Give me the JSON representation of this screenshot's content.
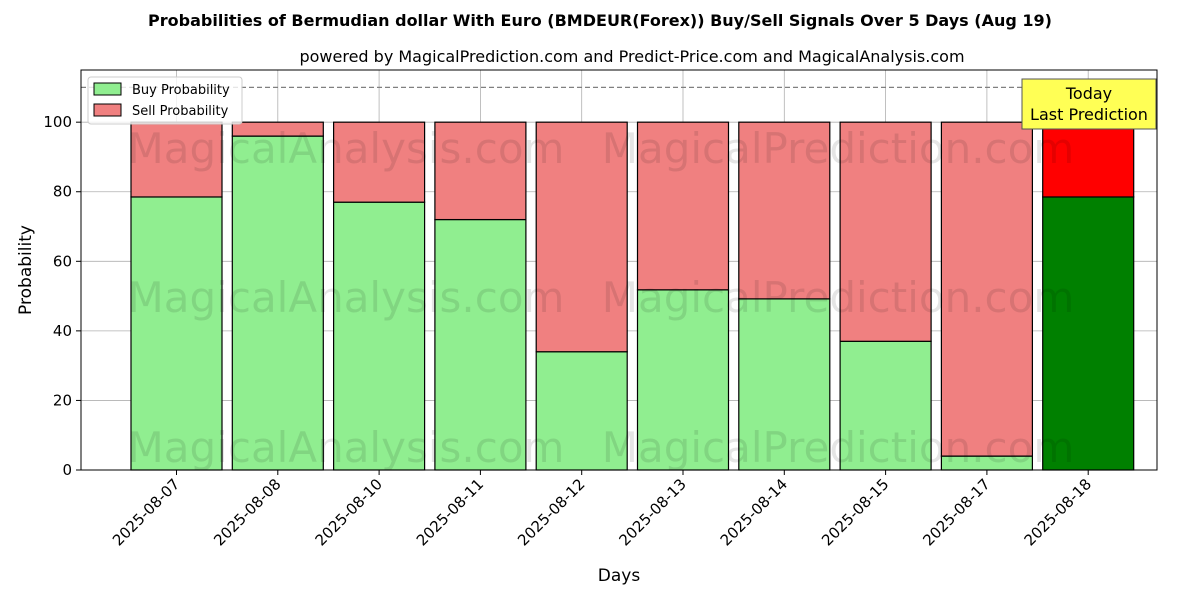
{
  "chart_data": {
    "type": "bar",
    "stacked": true,
    "title": "Probabilities of Bermudian dollar With Euro (BMDEUR(Forex)) Buy/Sell Signals Over 5 Days (Aug 19)",
    "subtitle": "powered by MagicalPrediction.com and Predict-Price.com and MagicalAnalysis.com",
    "xlabel": "Days",
    "ylabel": "Probability",
    "ylim": [
      0,
      115
    ],
    "yticks": [
      0,
      20,
      40,
      60,
      80,
      100
    ],
    "grid": true,
    "legend_position": "top-left",
    "categories": [
      "2025-08-07",
      "2025-08-08",
      "2025-08-10",
      "2025-08-11",
      "2025-08-12",
      "2025-08-13",
      "2025-08-14",
      "2025-08-15",
      "2025-08-17",
      "2025-08-18"
    ],
    "series": [
      {
        "name": "Buy Probability",
        "color": "#90ee90",
        "highlight_color": "#008000",
        "values": [
          78.5,
          96,
          77,
          72,
          34,
          51.8,
          49.2,
          37,
          4,
          78.5
        ]
      },
      {
        "name": "Sell Probability",
        "color": "#f08080",
        "highlight_color": "#ff0000",
        "values": [
          21.5,
          4,
          23,
          28,
          66,
          48.2,
          50.8,
          63,
          96,
          21.5
        ]
      }
    ],
    "highlight_category": "2025-08-18",
    "reference_line": {
      "y": 110,
      "style": "dashed"
    },
    "annotation": {
      "lines": [
        "Today",
        "Last Prediction"
      ],
      "background": "#ffff55"
    },
    "watermarks": [
      "MagicalAnalysis.com",
      "MagicalPrediction.com"
    ]
  }
}
